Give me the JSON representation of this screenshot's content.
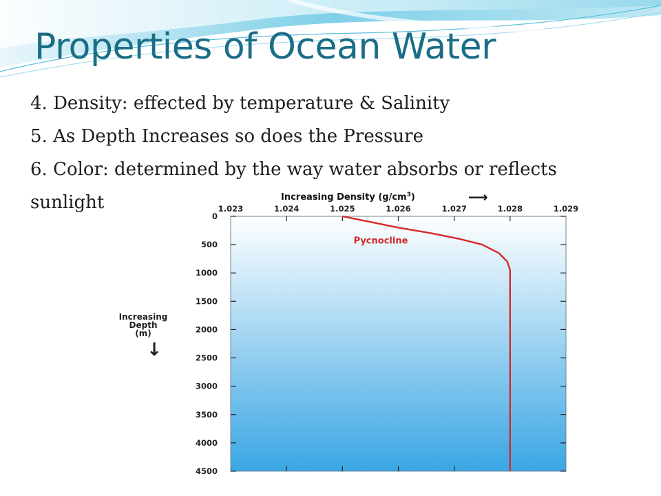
{
  "slide": {
    "title": "Properties of Ocean Water",
    "bullets": [
      "4. Density: effected by temperature & Salinity",
      "5. As Depth Increases so does the Pressure",
      "6. Color: determined by the way water absorbs or reflects",
      "sunlight"
    ]
  },
  "chart_data": {
    "type": "line",
    "title": "",
    "xlabel": "Increasing Density (g/cm",
    "xlabel_superscript": "3",
    "xlabel_close": ")",
    "xlabel_arrow": "⟶",
    "ylabel_lines": [
      "Increasing",
      "Depth",
      "(m)"
    ],
    "ylabel_arrow": "↓",
    "x_ticks": [
      "1.023",
      "1.024",
      "1.025",
      "1.026",
      "1.027",
      "1.028",
      "1.029"
    ],
    "y_ticks": [
      "0",
      "500",
      "1000",
      "1500",
      "2000",
      "2500",
      "3000",
      "3500",
      "4000",
      "4500"
    ],
    "xlim": [
      1.023,
      1.029
    ],
    "ylim": [
      0,
      4500
    ],
    "y_inverted": true,
    "x_axis_position": "top",
    "series": [
      {
        "name": "",
        "color": "#d42a2a",
        "points": [
          [
            1.025,
            0
          ],
          [
            1.0255,
            100
          ],
          [
            1.026,
            200
          ],
          [
            1.0266,
            300
          ],
          [
            1.0271,
            400
          ],
          [
            1.0275,
            500
          ],
          [
            1.0278,
            650
          ],
          [
            1.02795,
            800
          ],
          [
            1.028,
            950
          ],
          [
            1.028,
            1500
          ],
          [
            1.028,
            2500
          ],
          [
            1.028,
            3500
          ],
          [
            1.028,
            4500
          ]
        ]
      }
    ],
    "annotations": [
      {
        "text": "Pycnocline",
        "x": 1.0252,
        "y": 480,
        "color": "#d42a2a"
      }
    ],
    "background": {
      "top_color": "#ffffff",
      "bottom_color": "#3aa6e4"
    },
    "grid": false
  }
}
